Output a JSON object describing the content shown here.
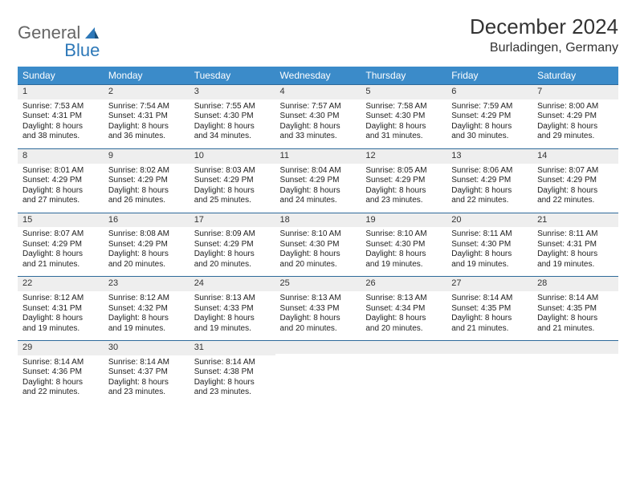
{
  "brand": {
    "part1": "General",
    "part2": "Blue"
  },
  "title": {
    "month": "December 2024",
    "location": "Burladingen, Germany"
  },
  "weekdays": [
    "Sunday",
    "Monday",
    "Tuesday",
    "Wednesday",
    "Thursday",
    "Friday",
    "Saturday"
  ],
  "colors": {
    "header": "#3b8bc9",
    "divider": "#2e6a9a",
    "alt": "#eeeeee"
  },
  "weeks": [
    [
      {
        "n": "1",
        "sr": "7:53 AM",
        "ss": "4:31 PM",
        "dl": "8 hours and 38 minutes."
      },
      {
        "n": "2",
        "sr": "7:54 AM",
        "ss": "4:31 PM",
        "dl": "8 hours and 36 minutes."
      },
      {
        "n": "3",
        "sr": "7:55 AM",
        "ss": "4:30 PM",
        "dl": "8 hours and 34 minutes."
      },
      {
        "n": "4",
        "sr": "7:57 AM",
        "ss": "4:30 PM",
        "dl": "8 hours and 33 minutes."
      },
      {
        "n": "5",
        "sr": "7:58 AM",
        "ss": "4:30 PM",
        "dl": "8 hours and 31 minutes."
      },
      {
        "n": "6",
        "sr": "7:59 AM",
        "ss": "4:29 PM",
        "dl": "8 hours and 30 minutes."
      },
      {
        "n": "7",
        "sr": "8:00 AM",
        "ss": "4:29 PM",
        "dl": "8 hours and 29 minutes."
      }
    ],
    [
      {
        "n": "8",
        "sr": "8:01 AM",
        "ss": "4:29 PM",
        "dl": "8 hours and 27 minutes."
      },
      {
        "n": "9",
        "sr": "8:02 AM",
        "ss": "4:29 PM",
        "dl": "8 hours and 26 minutes."
      },
      {
        "n": "10",
        "sr": "8:03 AM",
        "ss": "4:29 PM",
        "dl": "8 hours and 25 minutes."
      },
      {
        "n": "11",
        "sr": "8:04 AM",
        "ss": "4:29 PM",
        "dl": "8 hours and 24 minutes."
      },
      {
        "n": "12",
        "sr": "8:05 AM",
        "ss": "4:29 PM",
        "dl": "8 hours and 23 minutes."
      },
      {
        "n": "13",
        "sr": "8:06 AM",
        "ss": "4:29 PM",
        "dl": "8 hours and 22 minutes."
      },
      {
        "n": "14",
        "sr": "8:07 AM",
        "ss": "4:29 PM",
        "dl": "8 hours and 22 minutes."
      }
    ],
    [
      {
        "n": "15",
        "sr": "8:07 AM",
        "ss": "4:29 PM",
        "dl": "8 hours and 21 minutes."
      },
      {
        "n": "16",
        "sr": "8:08 AM",
        "ss": "4:29 PM",
        "dl": "8 hours and 20 minutes."
      },
      {
        "n": "17",
        "sr": "8:09 AM",
        "ss": "4:29 PM",
        "dl": "8 hours and 20 minutes."
      },
      {
        "n": "18",
        "sr": "8:10 AM",
        "ss": "4:30 PM",
        "dl": "8 hours and 20 minutes."
      },
      {
        "n": "19",
        "sr": "8:10 AM",
        "ss": "4:30 PM",
        "dl": "8 hours and 19 minutes."
      },
      {
        "n": "20",
        "sr": "8:11 AM",
        "ss": "4:30 PM",
        "dl": "8 hours and 19 minutes."
      },
      {
        "n": "21",
        "sr": "8:11 AM",
        "ss": "4:31 PM",
        "dl": "8 hours and 19 minutes."
      }
    ],
    [
      {
        "n": "22",
        "sr": "8:12 AM",
        "ss": "4:31 PM",
        "dl": "8 hours and 19 minutes."
      },
      {
        "n": "23",
        "sr": "8:12 AM",
        "ss": "4:32 PM",
        "dl": "8 hours and 19 minutes."
      },
      {
        "n": "24",
        "sr": "8:13 AM",
        "ss": "4:33 PM",
        "dl": "8 hours and 19 minutes."
      },
      {
        "n": "25",
        "sr": "8:13 AM",
        "ss": "4:33 PM",
        "dl": "8 hours and 20 minutes."
      },
      {
        "n": "26",
        "sr": "8:13 AM",
        "ss": "4:34 PM",
        "dl": "8 hours and 20 minutes."
      },
      {
        "n": "27",
        "sr": "8:14 AM",
        "ss": "4:35 PM",
        "dl": "8 hours and 21 minutes."
      },
      {
        "n": "28",
        "sr": "8:14 AM",
        "ss": "4:35 PM",
        "dl": "8 hours and 21 minutes."
      }
    ],
    [
      {
        "n": "29",
        "sr": "8:14 AM",
        "ss": "4:36 PM",
        "dl": "8 hours and 22 minutes."
      },
      {
        "n": "30",
        "sr": "8:14 AM",
        "ss": "4:37 PM",
        "dl": "8 hours and 23 minutes."
      },
      {
        "n": "31",
        "sr": "8:14 AM",
        "ss": "4:38 PM",
        "dl": "8 hours and 23 minutes."
      },
      null,
      null,
      null,
      null
    ]
  ],
  "labels": {
    "sunrise": "Sunrise:",
    "sunset": "Sunset:",
    "daylight": "Daylight:"
  }
}
